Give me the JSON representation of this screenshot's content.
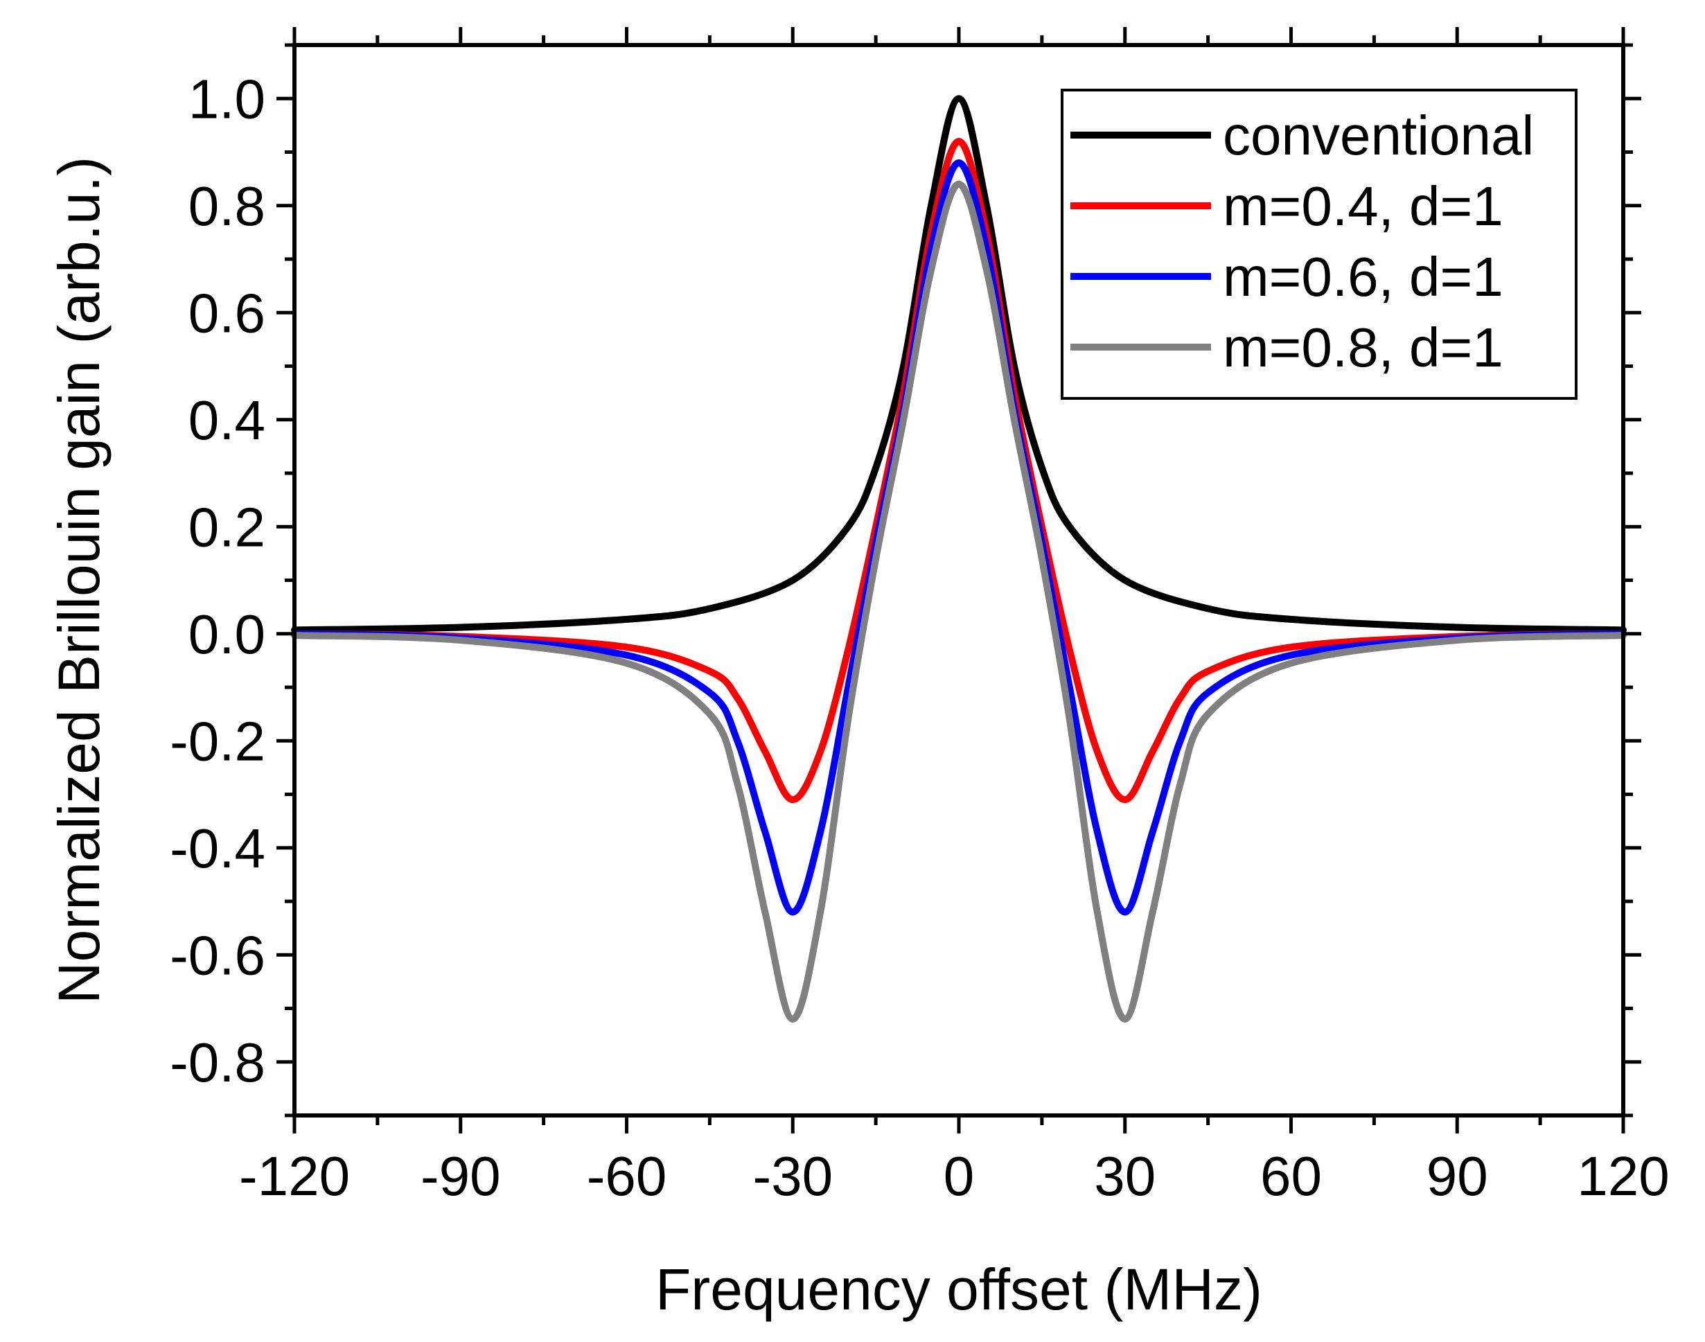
{
  "chart_data": {
    "type": "line",
    "title": "",
    "xlabel": "Frequency offset (MHz)",
    "ylabel": "Normalized Brillouin gain (arb.u.)",
    "xlim": [
      -120,
      120
    ],
    "ylim": [
      -0.9,
      1.1
    ],
    "xticks": [
      -120,
      -90,
      -60,
      -30,
      0,
      30,
      60,
      90,
      120
    ],
    "xtick_labels": [
      "-120",
      "-90",
      "-60",
      "-30",
      "0",
      "30",
      "60",
      "90",
      "120"
    ],
    "yticks": [
      -0.8,
      -0.6,
      -0.4,
      -0.2,
      0.0,
      0.2,
      0.4,
      0.6,
      0.8,
      1.0
    ],
    "ytick_labels": [
      "-0.8",
      "-0.6",
      "-0.4",
      "-0.2",
      "0.0",
      "0.2",
      "0.4",
      "0.6",
      "0.8",
      "1.0"
    ],
    "grid": false,
    "legend_position": "top-right",
    "linewidth_semantic": "thick",
    "series": [
      {
        "name": "conventional",
        "color": "#000000",
        "x": [
          -120,
          -90,
          -60,
          -45,
          -30,
          -20,
          -15,
          -10,
          -5,
          0,
          5,
          10,
          15,
          20,
          30,
          45,
          60,
          90,
          120
        ],
        "y": [
          0.007,
          0.012,
          0.027,
          0.047,
          0.1,
          0.2,
          0.31,
          0.5,
          0.8,
          1.0,
          0.8,
          0.5,
          0.31,
          0.2,
          0.1,
          0.047,
          0.027,
          0.012,
          0.007
        ]
      },
      {
        "name": "m=0.4, d=1",
        "color": "#ff0000",
        "x": [
          -120,
          -90,
          -60,
          -45,
          -40,
          -35,
          -30,
          -25,
          -20,
          -15,
          -10,
          -5,
          0,
          5,
          10,
          15,
          20,
          25,
          30,
          35,
          40,
          45,
          60,
          90,
          120
        ],
        "y": [
          0.0,
          -0.005,
          -0.025,
          -0.07,
          -0.12,
          -0.22,
          -0.31,
          -0.22,
          -0.03,
          0.2,
          0.45,
          0.75,
          0.92,
          0.75,
          0.45,
          0.2,
          -0.03,
          -0.22,
          -0.31,
          -0.22,
          -0.12,
          -0.07,
          -0.025,
          -0.005,
          0.0
        ]
      },
      {
        "name": "m=0.6, d=1",
        "color": "#0000ff",
        "x": [
          -120,
          -90,
          -60,
          -45,
          -40,
          -35,
          -30,
          -25,
          -20,
          -15,
          -10,
          -5,
          0,
          5,
          10,
          15,
          20,
          25,
          30,
          35,
          40,
          45,
          60,
          90,
          120
        ],
        "y": [
          0.0,
          -0.008,
          -0.04,
          -0.11,
          -0.2,
          -0.37,
          -0.52,
          -0.37,
          -0.1,
          0.17,
          0.42,
          0.72,
          0.88,
          0.72,
          0.42,
          0.17,
          -0.1,
          -0.37,
          -0.52,
          -0.37,
          -0.2,
          -0.11,
          -0.04,
          -0.008,
          0.0
        ]
      },
      {
        "name": "m=0.8, d=1",
        "color": "#808080",
        "x": [
          -120,
          -90,
          -60,
          -45,
          -40,
          -35,
          -30,
          -25,
          -20,
          -15,
          -10,
          -5,
          0,
          5,
          10,
          15,
          20,
          25,
          30,
          35,
          40,
          45,
          60,
          90,
          120
        ],
        "y": [
          -0.003,
          -0.012,
          -0.055,
          -0.15,
          -0.28,
          -0.52,
          -0.72,
          -0.52,
          -0.16,
          0.14,
          0.4,
          0.68,
          0.84,
          0.68,
          0.4,
          0.14,
          -0.16,
          -0.52,
          -0.72,
          -0.52,
          -0.28,
          -0.15,
          -0.055,
          -0.012,
          -0.003
        ]
      }
    ]
  }
}
